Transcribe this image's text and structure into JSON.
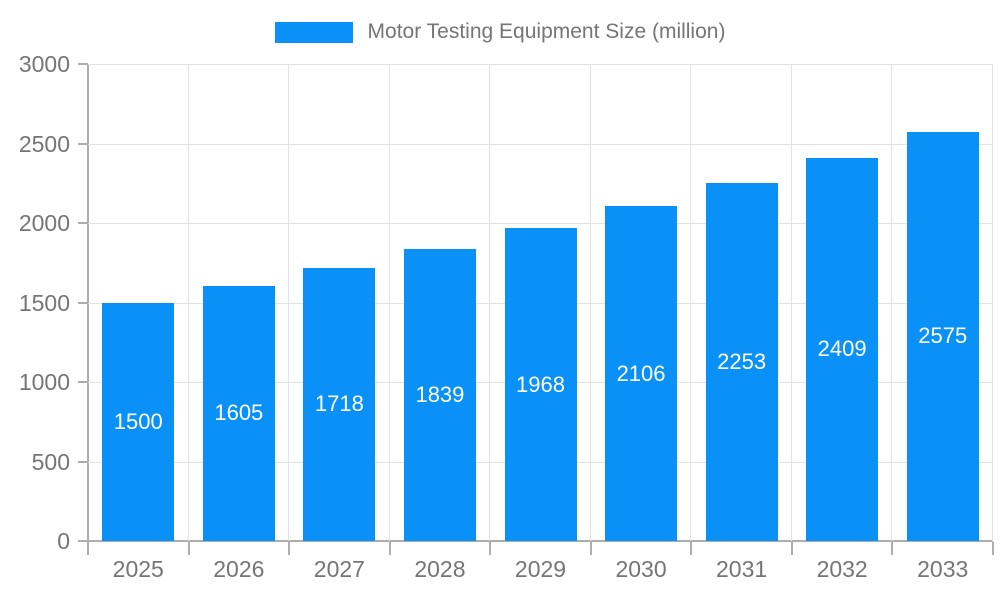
{
  "chart_data": {
    "type": "bar",
    "title": "Motor Testing Equipment Size (million)",
    "categories": [
      "2025",
      "2026",
      "2027",
      "2028",
      "2029",
      "2030",
      "2031",
      "2032",
      "2033"
    ],
    "series": [
      {
        "name": "Motor Testing Equipment Size (million)",
        "values": [
          1500,
          1605,
          1718,
          1839,
          1968,
          2106,
          2253,
          2409,
          2575
        ]
      }
    ],
    "xlabel": "",
    "ylabel": "",
    "ylim": [
      0,
      3000
    ],
    "ytick_step": 500,
    "ytick_labels": [
      "0",
      "500",
      "1000",
      "1500",
      "2000",
      "2500",
      "3000"
    ],
    "grid": true,
    "legend_position": "top",
    "value_labels": "inside-center"
  },
  "colors": {
    "bar": "#0a91f8",
    "bar_label": "#ffffff",
    "axis_line": "#adadad",
    "gridline": "#e2e2e2",
    "tick_text": "#757575",
    "legend_text": "#757575",
    "background": "#ffffff"
  }
}
